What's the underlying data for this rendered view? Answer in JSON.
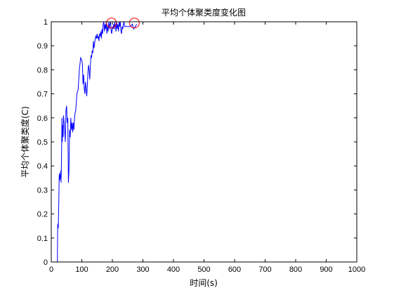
{
  "chart_data": {
    "type": "line",
    "title": "平均个体聚类度变化图",
    "xlabel": "时间(s)",
    "ylabel": "平均个体聚类度(C)",
    "xlim": [
      0,
      1000
    ],
    "ylim": [
      0,
      1
    ],
    "xticks": [
      0,
      100,
      200,
      300,
      400,
      500,
      600,
      700,
      800,
      900,
      1000
    ],
    "yticks": [
      0,
      0.1,
      0.2,
      0.3,
      0.4,
      0.5,
      0.6,
      0.7,
      0.8,
      0.9,
      1
    ],
    "grid": false,
    "legend": "none",
    "colors": {
      "series": "#0000ff",
      "markers": "#ff0000",
      "axes": "#000000"
    },
    "series": [
      {
        "x": [
          20,
          21,
          22,
          23,
          24,
          25,
          26,
          27,
          28,
          29,
          30,
          31,
          32,
          33,
          34,
          35,
          36,
          37,
          38,
          39,
          40,
          42,
          44,
          46,
          48,
          50,
          52,
          54,
          56,
          58,
          60,
          62,
          64,
          66,
          68,
          70,
          72,
          74,
          76,
          78,
          80,
          84,
          88,
          92,
          96,
          100,
          102,
          104,
          106,
          108,
          110,
          112,
          114,
          116,
          118,
          120,
          122,
          124,
          126,
          128,
          130,
          132,
          134,
          136,
          138,
          140,
          142,
          144,
          146,
          148,
          150,
          152,
          154,
          156,
          158,
          160,
          162,
          164,
          166,
          168,
          170,
          172,
          174,
          176,
          178,
          180,
          182,
          184,
          186,
          188,
          190,
          192,
          194,
          196,
          198,
          200,
          202,
          204,
          206,
          208,
          210,
          212,
          214,
          216,
          218,
          220,
          222,
          224,
          226,
          228,
          230,
          232,
          234,
          236,
          238,
          240,
          250,
          260,
          265,
          270,
          275,
          280
        ],
        "y": [
          0,
          0.15,
          0.16,
          0.14,
          0.2,
          0.28,
          0.36,
          0.37,
          0.34,
          0.36,
          0.35,
          0.38,
          0.33,
          0.4,
          0.48,
          0.6,
          0.5,
          0.57,
          0.55,
          0.52,
          0.61,
          0.58,
          0.55,
          0.5,
          0.63,
          0.65,
          0.58,
          0.6,
          0.33,
          0.38,
          0.55,
          0.52,
          0.6,
          0.55,
          0.58,
          0.54,
          0.58,
          0.55,
          0.6,
          0.62,
          0.63,
          0.7,
          0.72,
          0.8,
          0.85,
          0.84,
          0.82,
          0.74,
          0.78,
          0.72,
          0.7,
          0.75,
          0.72,
          0.69,
          0.73,
          0.79,
          0.82,
          0.8,
          0.76,
          0.82,
          0.86,
          0.85,
          0.88,
          0.87,
          0.92,
          0.89,
          0.91,
          0.93,
          0.94,
          0.93,
          0.95,
          0.93,
          0.94,
          0.92,
          0.95,
          0.94,
          0.96,
          0.93,
          0.97,
          0.95,
          0.99,
          1.0,
          0.96,
          0.99,
          0.97,
          1.0,
          0.95,
          0.98,
          0.96,
          1.0,
          0.97,
          0.99,
          1.0,
          0.96,
          0.95,
          0.98,
          0.97,
          0.99,
          0.97,
          1.0,
          0.98,
          0.96,
          1.0,
          0.97,
          0.99,
          0.96,
          1.0,
          0.98,
          1.0,
          0.96,
          0.95,
          0.98,
          0.97,
          0.99,
          1.0,
          0.98,
          0.98,
          0.98,
          0.99,
          0.97,
          0.98,
          0.99
        ]
      }
    ],
    "highlights": [
      {
        "x": 197,
        "y": 0.995
      },
      {
        "x": 272,
        "y": 0.995
      }
    ]
  }
}
